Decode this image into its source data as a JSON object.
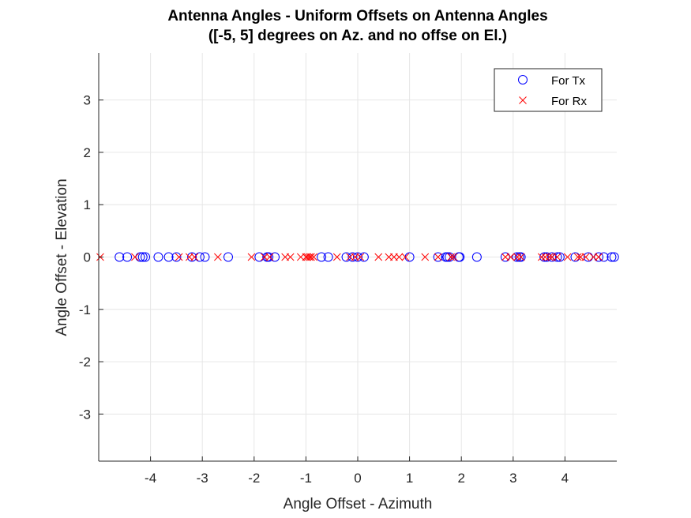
{
  "chart_data": {
    "type": "scatter",
    "title": [
      "Antenna Angles - Uniform Offsets on Antenna Angles",
      "([-5, 5] degrees on Az. and no offse on El.)"
    ],
    "xlabel": "Angle Offset - Azimuth",
    "ylabel": "Angle Offset - Elevation",
    "xlim": [
      -5,
      5
    ],
    "ylim": [
      -3.9,
      3.9
    ],
    "x_ticks": [
      -4,
      -3,
      -2,
      -1,
      0,
      1,
      2,
      3,
      4
    ],
    "y_ticks": [
      -3,
      -2,
      -1,
      0,
      1,
      2,
      3
    ],
    "grid": true,
    "legend_position": "top-right",
    "series": [
      {
        "name": "For Tx",
        "marker": "circle",
        "color": "#0000ff",
        "x": [
          -4.6,
          -4.45,
          -4.2,
          -4.15,
          -4.1,
          -3.85,
          -3.65,
          -3.5,
          -3.2,
          -3.05,
          -2.95,
          -2.5,
          -1.9,
          -1.75,
          -1.72,
          -1.6,
          -0.7,
          -0.57,
          -0.22,
          -0.1,
          0.0,
          0.12,
          1.0,
          1.55,
          1.7,
          1.73,
          1.77,
          1.95,
          1.97,
          2.3,
          2.85,
          3.07,
          3.12,
          3.15,
          3.6,
          3.65,
          3.75,
          3.85,
          3.9,
          4.2,
          4.45,
          4.65,
          4.75,
          4.9,
          4.95
        ],
        "y": [
          0,
          0,
          0,
          0,
          0,
          0,
          0,
          0,
          0,
          0,
          0,
          0,
          0,
          0,
          0,
          0,
          0,
          0,
          0,
          0,
          0,
          0,
          0,
          0,
          0,
          0,
          0,
          0,
          0,
          0,
          0,
          0,
          0,
          0,
          0,
          0,
          0,
          0,
          0,
          0,
          0,
          0,
          0,
          0,
          0
        ]
      },
      {
        "name": "For Rx",
        "marker": "x",
        "color": "#ff0000",
        "x": [
          -4.97,
          -4.3,
          -3.45,
          -3.25,
          -3.15,
          -2.7,
          -2.05,
          -1.8,
          -1.7,
          -1.4,
          -1.3,
          -1.1,
          -1.0,
          -0.97,
          -0.93,
          -0.9,
          -0.85,
          -0.4,
          -0.15,
          -0.05,
          0.05,
          0.4,
          0.6,
          0.7,
          0.8,
          0.92,
          1.3,
          1.55,
          1.8,
          1.85,
          2.85,
          2.95,
          3.08,
          3.15,
          3.55,
          3.62,
          3.7,
          3.75,
          3.85,
          4.05,
          4.25,
          4.3,
          4.4,
          4.55,
          4.65
        ],
        "y": [
          0,
          0,
          0,
          0,
          0,
          0,
          0,
          0,
          0,
          0,
          0,
          0,
          0,
          0,
          0,
          0,
          0,
          0,
          0,
          0,
          0,
          0,
          0,
          0,
          0,
          0,
          0,
          0,
          0,
          0,
          0,
          0,
          0,
          0,
          0,
          0,
          0,
          0,
          0,
          0,
          0,
          0,
          0,
          0,
          0
        ]
      }
    ]
  }
}
